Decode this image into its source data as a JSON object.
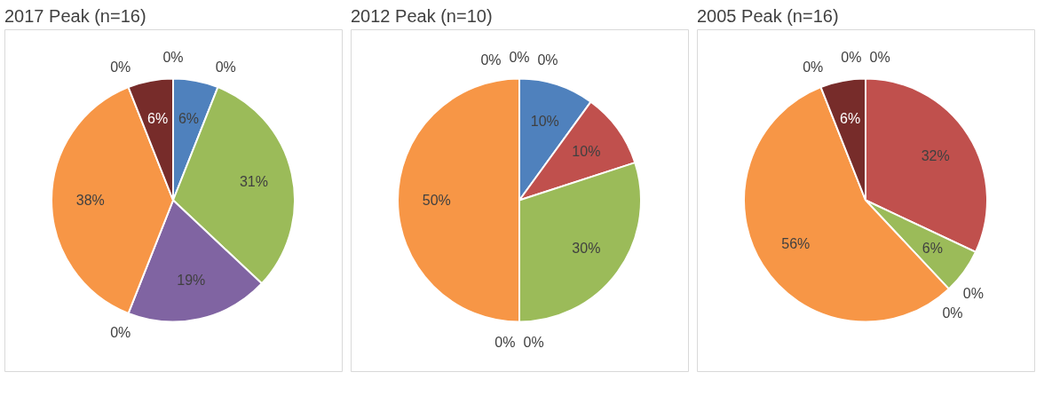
{
  "chart_data": [
    {
      "type": "pie",
      "title": "2017 Peak (n=16)",
      "categories": [
        null,
        null,
        null,
        null,
        null,
        null,
        null,
        null,
        null
      ],
      "values": [
        6,
        0,
        31,
        19,
        0,
        38,
        0,
        6,
        0
      ],
      "value_labels": [
        "6%",
        "0%",
        "31%",
        "19%",
        "0%",
        "38%",
        "0%",
        "6%",
        "0%"
      ],
      "colors": [
        "#4f81bd",
        "#c0504d",
        "#9bbb59",
        "#8064a2",
        "#4bacc6",
        "#f79646",
        "#2c4d75",
        "#772c2a",
        "#5f7530"
      ]
    },
    {
      "type": "pie",
      "title": "2012 Peak (n=10)",
      "categories": [
        null,
        null,
        null,
        null,
        null,
        null,
        null,
        null,
        null
      ],
      "values": [
        10,
        10,
        30,
        0,
        0,
        50,
        0,
        0,
        0
      ],
      "value_labels": [
        "10%",
        "10%",
        "30%",
        "0%",
        "0%",
        "50%",
        "0%",
        "0%",
        "0%"
      ],
      "colors": [
        "#4f81bd",
        "#c0504d",
        "#9bbb59",
        "#8064a2",
        "#4bacc6",
        "#f79646",
        "#2c4d75",
        "#772c2a",
        "#5f7530"
      ]
    },
    {
      "type": "pie",
      "title": "2005 Peak (n=16)",
      "categories": [
        null,
        null,
        null,
        null,
        null,
        null,
        null,
        null,
        null
      ],
      "values": [
        0,
        32,
        6,
        0,
        0,
        56,
        0,
        6,
        0
      ],
      "value_labels": [
        "0%",
        "32%",
        "6%",
        "0%",
        "0%",
        "56%",
        "0%",
        "6%",
        "0%"
      ],
      "colors": [
        "#4f81bd",
        "#c0504d",
        "#9bbb59",
        "#8064a2",
        "#4bacc6",
        "#f79646",
        "#2c4d75",
        "#772c2a",
        "#5f7530"
      ]
    }
  ]
}
